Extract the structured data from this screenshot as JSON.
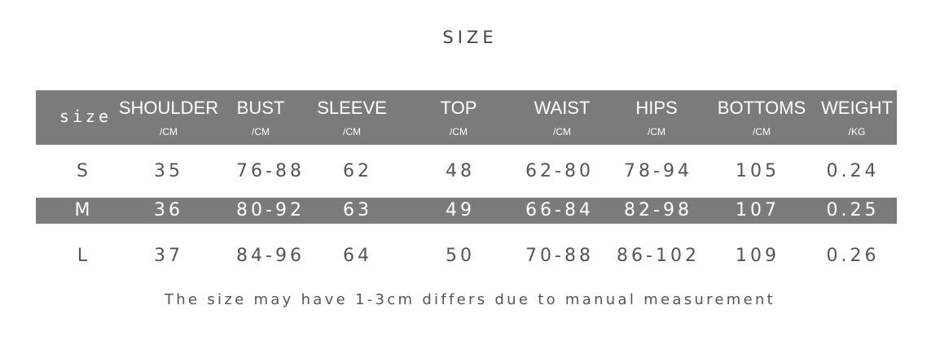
{
  "title": "SIZE",
  "headers": [
    {
      "name": "size",
      "unit": ""
    },
    {
      "name": "SHOULDER",
      "unit": "/CM"
    },
    {
      "name": "BUST",
      "unit": "/CM"
    },
    {
      "name": "SLEEVE",
      "unit": "/CM"
    },
    {
      "name": "TOP",
      "unit": "/CM"
    },
    {
      "name": "WAIST",
      "unit": "/CM"
    },
    {
      "name": "HIPS",
      "unit": "/CM"
    },
    {
      "name": "BOTTOMS",
      "unit": "/CM"
    },
    {
      "name": "WEIGHT",
      "unit": "/KG"
    }
  ],
  "rows": [
    [
      "S",
      "35",
      "76-88",
      "62",
      "48",
      "62-80",
      "78-94",
      "105",
      "0.24"
    ],
    [
      "M",
      "36",
      "80-92",
      "63",
      "49",
      "66-84",
      "82-98",
      "107",
      "0.25"
    ],
    [
      "L",
      "37",
      "84-96",
      "64",
      "50",
      "70-88",
      "86-102",
      "109",
      "0.26"
    ]
  ],
  "note": "The size may have 1-3cm differs due to manual measurement",
  "colors": {
    "band": "#7b7b7b",
    "text": "#555555"
  }
}
